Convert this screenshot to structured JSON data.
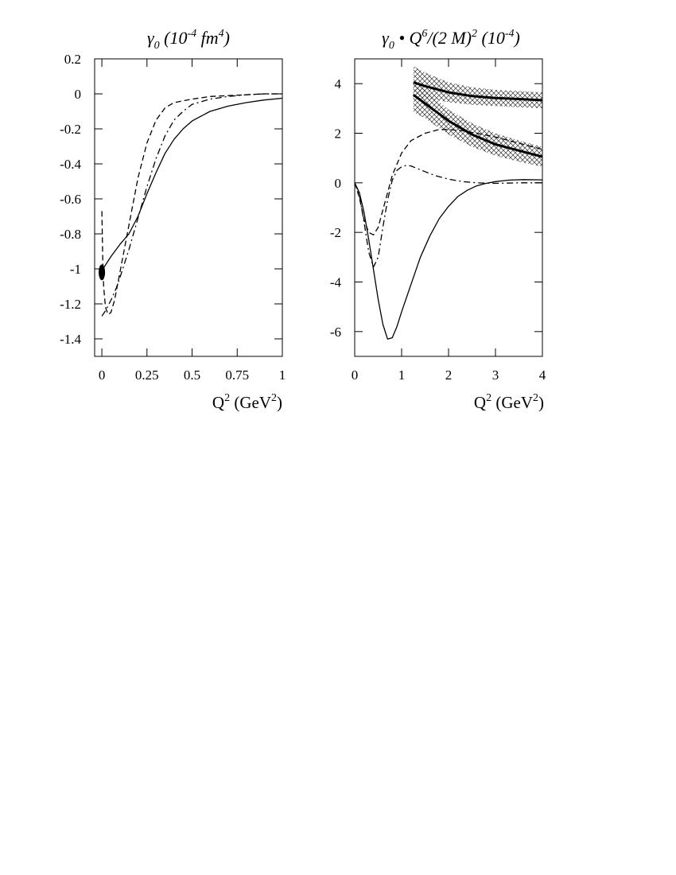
{
  "chart_data": [
    {
      "type": "line",
      "title": "γ₀ (10⁻⁴ fm⁴)",
      "title_parts": {
        "symbol": "γ",
        "sub": "0",
        "unit_pre": "(10",
        "exp1": "-4",
        "unit_mid": " fm",
        "exp2": "4",
        "unit_post": ")"
      },
      "xlabel": "Q² (GeV²)",
      "xlabel_parts": {
        "q": "Q",
        "q_sup": "2",
        "unit": "(GeV",
        "unit_sup": "2",
        "close": ")"
      },
      "ylabel": "",
      "xlim": [
        -0.04,
        1.0
      ],
      "ylim": [
        -1.5,
        0.2
      ],
      "xticks": [
        {
          "value": 0,
          "label": "0"
        },
        {
          "value": 0.25,
          "label": "0.25"
        },
        {
          "value": 0.5,
          "label": "0.5"
        },
        {
          "value": 0.75,
          "label": "0.75"
        },
        {
          "value": 1,
          "label": "1"
        }
      ],
      "yticks": [
        {
          "value": 0.2,
          "label": "0.2"
        },
        {
          "value": 0,
          "label": "0"
        },
        {
          "value": -0.2,
          "label": "-0.2"
        },
        {
          "value": -0.4,
          "label": "-0.4"
        },
        {
          "value": -0.6,
          "label": "-0.6"
        },
        {
          "value": -0.8,
          "label": "-0.8"
        },
        {
          "value": -1,
          "label": "-1"
        },
        {
          "value": -1.2,
          "label": "-1.2"
        },
        {
          "value": -1.4,
          "label": "-1.4"
        }
      ],
      "grid": false,
      "series": [
        {
          "style": "solid",
          "width": 1.3,
          "x": [
            0,
            0.05,
            0.1,
            0.15,
            0.2,
            0.25,
            0.3,
            0.35,
            0.4,
            0.45,
            0.5,
            0.6,
            0.7,
            0.8,
            0.9,
            1.0
          ],
          "y": [
            -1.01,
            -0.93,
            -0.86,
            -0.8,
            -0.7,
            -0.57,
            -0.45,
            -0.34,
            -0.26,
            -0.2,
            -0.155,
            -0.1,
            -0.07,
            -0.05,
            -0.035,
            -0.025
          ]
        },
        {
          "style": "dashed",
          "width": 1.3,
          "x": [
            0,
            0.005,
            0.01,
            0.02,
            0.035,
            0.05,
            0.07,
            0.1,
            0.15,
            0.2,
            0.25,
            0.3,
            0.35,
            0.4,
            0.5,
            0.6,
            0.7,
            0.8,
            0.9,
            1.0
          ],
          "y": [
            -0.67,
            -0.95,
            -1.1,
            -1.22,
            -1.26,
            -1.25,
            -1.18,
            -1.02,
            -0.75,
            -0.48,
            -0.28,
            -0.15,
            -0.08,
            -0.05,
            -0.03,
            -0.015,
            -0.01,
            -0.005,
            0,
            0
          ]
        },
        {
          "style": "dashdot",
          "width": 1.3,
          "x": [
            0,
            0.02,
            0.05,
            0.08,
            0.1,
            0.15,
            0.2,
            0.25,
            0.3,
            0.35,
            0.4,
            0.45,
            0.5,
            0.6,
            0.7,
            0.8,
            0.9,
            1.0
          ],
          "y": [
            -1.27,
            -1.24,
            -1.18,
            -1.11,
            -1.05,
            -0.89,
            -0.71,
            -0.53,
            -0.37,
            -0.24,
            -0.15,
            -0.1,
            -0.06,
            -0.03,
            -0.015,
            -0.005,
            0,
            0
          ]
        }
      ],
      "markers": [
        {
          "x": 0,
          "y": -1.02,
          "shape": "filled-ellipse",
          "rx_data": 0.018,
          "ry_data": 0.045
        }
      ]
    },
    {
      "type": "line",
      "title": "γ₀ • Q⁶/(2 M)² (10⁻⁴)",
      "title_parts": {
        "symbol": "γ",
        "sub": "0",
        "dot": " • Q",
        "exp1": "6",
        "mid": "/(2 M)",
        "exp2": "2",
        "unit_pre": "(10",
        "exp3": "-4",
        "unit_post": ")"
      },
      "xlabel": "Q² (GeV²)",
      "xlabel_parts": {
        "q": "Q",
        "q_sup": "2",
        "unit": "(GeV",
        "unit_sup": "2",
        "close": ")"
      },
      "ylabel": "",
      "xlim": [
        0,
        4
      ],
      "ylim": [
        -7,
        5
      ],
      "xticks": [
        {
          "value": 0,
          "label": "0"
        },
        {
          "value": 1,
          "label": "1"
        },
        {
          "value": 2,
          "label": "2"
        },
        {
          "value": 3,
          "label": "3"
        },
        {
          "value": 4,
          "label": "4"
        }
      ],
      "yticks": [
        {
          "value": 4,
          "label": "4"
        },
        {
          "value": 2,
          "label": "2"
        },
        {
          "value": 0,
          "label": "0"
        },
        {
          "value": -2,
          "label": "-2"
        },
        {
          "value": -4,
          "label": "-4"
        },
        {
          "value": -6,
          "label": "-6"
        }
      ],
      "grid": false,
      "bands": [
        {
          "pattern": "crosshatch",
          "x": [
            1.25,
            1.5,
            2.0,
            2.5,
            3.0,
            3.5,
            4.0
          ],
          "upper": [
            4.7,
            4.45,
            4.05,
            3.85,
            3.75,
            3.7,
            3.65
          ],
          "lower": [
            3.35,
            3.4,
            3.25,
            3.15,
            3.1,
            3.05,
            3.0
          ]
        },
        {
          "pattern": "crosshatch",
          "x": [
            1.25,
            1.5,
            2.0,
            2.5,
            3.0,
            3.5,
            4.0
          ],
          "upper": [
            4.1,
            3.75,
            2.95,
            2.4,
            2.0,
            1.7,
            1.45
          ],
          "lower": [
            2.85,
            2.6,
            1.95,
            1.45,
            1.1,
            0.85,
            0.65
          ]
        }
      ],
      "series": [
        {
          "style": "solid",
          "width": 1.3,
          "x": [
            0,
            0.1,
            0.2,
            0.3,
            0.4,
            0.5,
            0.6,
            0.7,
            0.8,
            0.9,
            1.0,
            1.2,
            1.4,
            1.6,
            1.8,
            2.0,
            2.2,
            2.4,
            2.6,
            2.8,
            3.0,
            3.3,
            3.6,
            4.0
          ],
          "y": [
            0,
            -0.4,
            -1.2,
            -2.3,
            -3.5,
            -4.7,
            -5.7,
            -6.3,
            -6.25,
            -5.8,
            -5.2,
            -4.1,
            -3.0,
            -2.15,
            -1.45,
            -0.95,
            -0.55,
            -0.3,
            -0.12,
            -0.02,
            0.05,
            0.11,
            0.13,
            0.12
          ]
        },
        {
          "style": "dashed",
          "width": 1.3,
          "x": [
            0,
            0.1,
            0.2,
            0.3,
            0.4,
            0.5,
            0.6,
            0.7,
            0.8,
            1.0,
            1.2,
            1.5,
            1.8,
            2.0,
            2.3,
            2.6,
            3.0,
            3.5,
            4.0
          ],
          "y": [
            0,
            -0.6,
            -1.5,
            -2.0,
            -2.1,
            -1.8,
            -1.1,
            -0.4,
            0.3,
            1.2,
            1.7,
            2.0,
            2.15,
            2.15,
            2.1,
            2.0,
            1.85,
            1.6,
            1.35
          ]
        },
        {
          "style": "dashdot",
          "width": 1.3,
          "x": [
            0,
            0.1,
            0.2,
            0.3,
            0.4,
            0.5,
            0.6,
            0.7,
            0.8,
            0.9,
            1.0,
            1.1,
            1.2,
            1.3,
            1.5,
            1.7,
            2.0,
            2.3,
            2.6,
            3.0,
            3.5,
            4.0
          ],
          "y": [
            0,
            -0.5,
            -1.6,
            -2.8,
            -3.4,
            -3.0,
            -1.8,
            -0.7,
            0.1,
            0.5,
            0.65,
            0.7,
            0.68,
            0.6,
            0.45,
            0.3,
            0.15,
            0.05,
            0,
            -0.02,
            0,
            0
          ]
        },
        {
          "style": "solid",
          "width": 3,
          "x": [
            1.25,
            1.5,
            2.0,
            2.5,
            3.0,
            3.5,
            4.0
          ],
          "y": [
            4.05,
            3.9,
            3.65,
            3.5,
            3.42,
            3.38,
            3.33
          ]
        },
        {
          "style": "solid",
          "width": 3,
          "x": [
            1.25,
            1.5,
            2.0,
            2.5,
            3.0,
            3.5,
            4.0
          ],
          "y": [
            3.55,
            3.2,
            2.5,
            1.95,
            1.55,
            1.3,
            1.05
          ]
        }
      ]
    }
  ]
}
